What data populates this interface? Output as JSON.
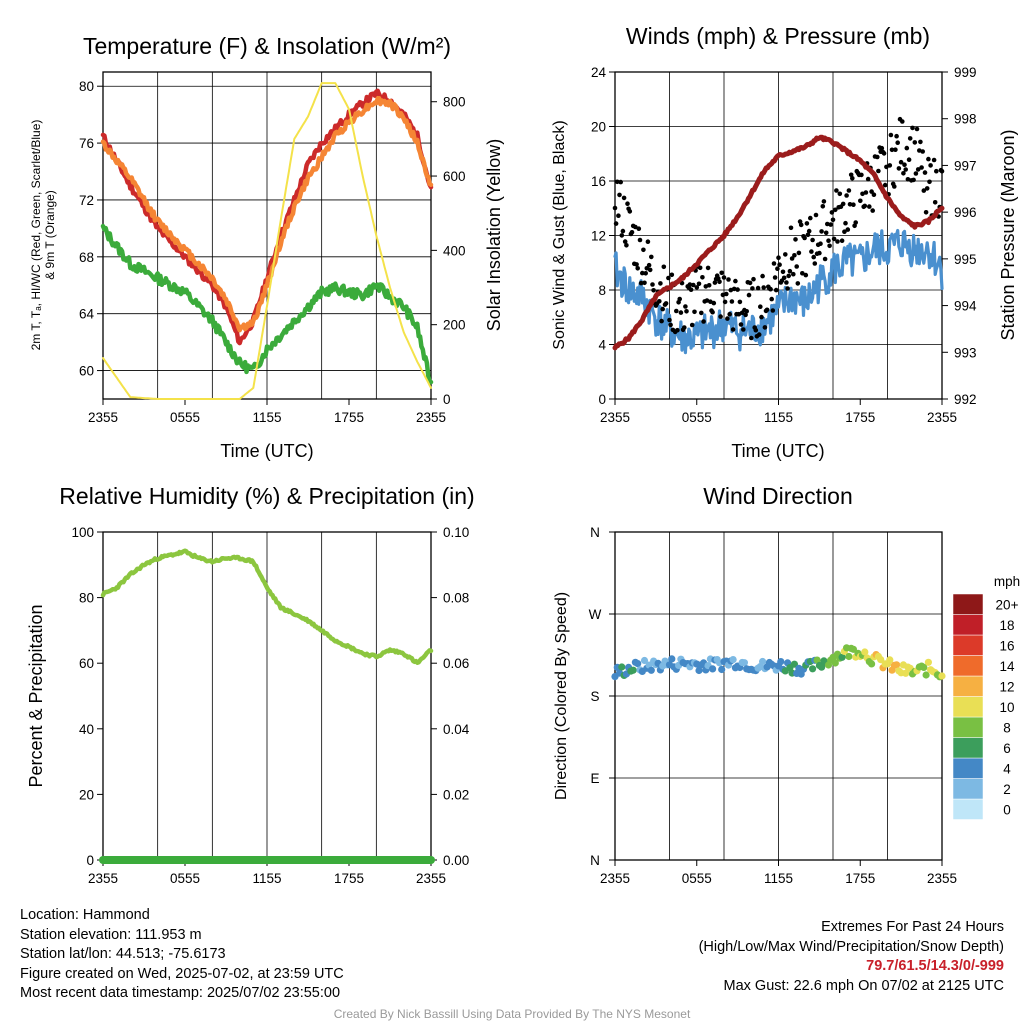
{
  "x_ticks": [
    "2355",
    "0555",
    "1155",
    "1755",
    "2355"
  ],
  "panels": {
    "temperature": {
      "title": "Temperature (F) & Insolation (W/m²)",
      "xlabel": "Time (UTC)",
      "ylabel_left_1": "2m T, Tₐ, HI/WC (Red, Green, Scarlet/Blue)",
      "ylabel_left_2": "& 9m T (Orange)",
      "ylabel_right": "Solar Insolation (Yellow)"
    },
    "winds": {
      "title": "Winds (mph) & Pressure (mb)",
      "xlabel": "Time (UTC)",
      "ylabel_left": "Sonic Wind & Gust (Blue, Black)",
      "ylabel_right": "Station Pressure (Maroon)"
    },
    "humidity": {
      "title": "Relative Humidity (%) & Precipitation (in)",
      "ylabel_left": "Percent & Precipitation"
    },
    "direction": {
      "title": "Wind Direction",
      "ylabel_left": "Direction (Colored By Speed)",
      "legend_title": "mph"
    }
  },
  "colors": {
    "temp_2m": "#cc2a2a",
    "temp_9m": "#f58534",
    "dewpoint": "#3bab3b",
    "insolation": "#f4e24a",
    "wind_speed": "#4a90cf",
    "wind_gust": "#000000",
    "pressure": "#9b1c1c",
    "humidity": "#8cc63f",
    "precip": "#3bab3b"
  },
  "chart_data": [
    {
      "type": "line",
      "title": "Temperature (F) & Insolation (W/m²)",
      "xlabel": "Time (UTC)",
      "x_hours_since_2355": [
        0,
        2,
        4,
        6,
        8,
        9,
        10,
        11,
        12,
        13,
        14,
        15,
        16,
        17,
        18,
        19,
        20,
        21,
        22,
        23,
        24
      ],
      "ylim_left": [
        58,
        81
      ],
      "ylim_right": [
        0,
        880
      ],
      "yticks_left": [
        60,
        64,
        68,
        72,
        76,
        80
      ],
      "yticks_right": [
        0,
        200,
        400,
        600,
        800
      ],
      "series": [
        {
          "name": "2m T",
          "axis": "left",
          "color": "#cc2a2a",
          "values": [
            76.5,
            73.0,
            70.0,
            68.0,
            66.0,
            64.5,
            62.0,
            63.5,
            66.5,
            69.5,
            72.0,
            74.5,
            76.0,
            77.0,
            78.0,
            78.8,
            79.5,
            79.0,
            78.0,
            76.5,
            72.7
          ]
        },
        {
          "name": "9m T",
          "axis": "left",
          "color": "#f58534",
          "values": [
            76.0,
            73.5,
            70.5,
            68.5,
            66.5,
            65.0,
            63.0,
            63.3,
            66.0,
            69.0,
            71.5,
            73.5,
            75.0,
            76.5,
            77.5,
            78.3,
            79.0,
            78.8,
            77.8,
            76.0,
            72.9
          ]
        },
        {
          "name": "Dewpoint",
          "axis": "left",
          "color": "#3bab3b",
          "values": [
            70.0,
            67.5,
            66.5,
            65.5,
            63.5,
            62.0,
            60.5,
            60.0,
            61.5,
            62.5,
            63.5,
            64.5,
            65.5,
            65.8,
            65.5,
            65.3,
            66.0,
            65.2,
            64.5,
            63.0,
            59.0
          ]
        },
        {
          "name": "Solar Insolation",
          "axis": "right",
          "color": "#f4e24a",
          "values": [
            110,
            5,
            0,
            0,
            0,
            0,
            0,
            30,
            250,
            480,
            700,
            760,
            850,
            850,
            780,
            600,
            440,
            300,
            180,
            100,
            30
          ]
        }
      ]
    },
    {
      "type": "line",
      "title": "Winds (mph) & Pressure (mb)",
      "xlabel": "Time (UTC)",
      "x_hours_since_2355": [
        0,
        1,
        2,
        3,
        4,
        5,
        6,
        7,
        8,
        9,
        10,
        11,
        12,
        13,
        14,
        15,
        16,
        17,
        18,
        19,
        20,
        21,
        22,
        23,
        24
      ],
      "ylim_left": [
        0,
        24
      ],
      "ylim_right": [
        992,
        999
      ],
      "yticks_left": [
        0,
        4,
        8,
        12,
        16,
        20,
        24
      ],
      "yticks_right": [
        992,
        993,
        994,
        995,
        996,
        997,
        998,
        999
      ],
      "series": [
        {
          "name": "Sonic Wind",
          "axis": "left",
          "color": "#4a90cf",
          "values": [
            9.5,
            8.0,
            7.5,
            6.0,
            5.0,
            4.5,
            4.5,
            5.0,
            5.5,
            5.0,
            5.0,
            5.5,
            6.5,
            7.5,
            7.0,
            8.5,
            9.5,
            10.0,
            10.0,
            11.0,
            11.0,
            11.5,
            11.0,
            11.0,
            9.5
          ]
        },
        {
          "name": "Gust",
          "axis": "left",
          "color": "#000000",
          "values": [
            15.0,
            12.5,
            10.5,
            8.5,
            7.0,
            6.5,
            7.5,
            8.0,
            7.5,
            6.5,
            6.5,
            7.0,
            9.5,
            10.5,
            11.0,
            12.0,
            13.0,
            14.0,
            15.0,
            16.0,
            17.0,
            18.5,
            18.0,
            15.5,
            15.5
          ]
        },
        {
          "name": "Station Pressure",
          "axis": "right",
          "color": "#9b1c1c",
          "values": [
            993.1,
            993.3,
            993.7,
            994.2,
            994.4,
            994.6,
            994.9,
            995.2,
            995.5,
            995.9,
            996.4,
            996.9,
            997.2,
            997.3,
            997.4,
            997.6,
            997.5,
            997.3,
            997.1,
            996.8,
            996.3,
            995.9,
            995.7,
            995.8,
            996.1
          ]
        }
      ]
    },
    {
      "type": "line",
      "title": "Relative Humidity (%) & Precipitation (in)",
      "x_hours_since_2355": [
        0,
        1,
        2,
        3,
        4,
        5,
        6,
        7,
        8,
        9,
        10,
        11,
        12,
        13,
        14,
        15,
        16,
        17,
        18,
        19,
        20,
        21,
        22,
        23,
        24
      ],
      "ylim_left": [
        0,
        100
      ],
      "ylim_right": [
        0.0,
        0.1
      ],
      "yticks_left": [
        0,
        20,
        40,
        60,
        80,
        100
      ],
      "yticks_right": [
        0.0,
        0.02,
        0.04,
        0.06,
        0.08,
        0.1
      ],
      "series": [
        {
          "name": "Relative Humidity",
          "axis": "left",
          "color": "#8cc63f",
          "values": [
            81,
            83,
            87,
            90,
            92,
            93,
            94,
            92,
            91,
            92,
            92,
            91,
            83,
            77,
            75,
            73,
            70,
            67,
            65,
            63,
            62,
            64,
            63,
            60,
            64
          ]
        },
        {
          "name": "Precipitation",
          "axis": "right",
          "color": "#3bab3b",
          "values": [
            0,
            0,
            0,
            0,
            0,
            0,
            0,
            0,
            0,
            0,
            0,
            0,
            0,
            0,
            0,
            0,
            0,
            0,
            0,
            0,
            0,
            0,
            0,
            0,
            0
          ]
        }
      ]
    },
    {
      "type": "scatter",
      "title": "Wind Direction",
      "ylabel": "Direction (Colored By Speed)",
      "yticks": [
        "N",
        "E",
        "S",
        "W",
        "N"
      ],
      "ylim_deg": [
        0,
        360
      ],
      "x_hours_since_2355": [
        0,
        1,
        2,
        3,
        4,
        5,
        6,
        7,
        8,
        9,
        10,
        11,
        12,
        13,
        14,
        15,
        16,
        17,
        18,
        19,
        20,
        21,
        22,
        23,
        24
      ],
      "direction_deg": [
        205,
        210,
        212,
        214,
        215,
        216,
        215,
        214,
        216,
        218,
        214,
        212,
        214,
        212,
        210,
        215,
        222,
        228,
        230,
        220,
        214,
        208,
        206,
        210,
        205
      ],
      "speed_mph": [
        6,
        6,
        5,
        4,
        4,
        4,
        4,
        4,
        4,
        4,
        4,
        4,
        5,
        6,
        6,
        7,
        8,
        9,
        10,
        11,
        12,
        11,
        10,
        10,
        9
      ],
      "colorbar": {
        "labels": [
          "0",
          "2",
          "4",
          "6",
          "8",
          "10",
          "12",
          "14",
          "16",
          "18",
          "20+"
        ],
        "colors": [
          "#bfe6f8",
          "#7db9e3",
          "#4488c6",
          "#3c9e5c",
          "#79c043",
          "#e9df55",
          "#f6b042",
          "#ef6b2b",
          "#dc3a29",
          "#c01f28",
          "#8e1818"
        ]
      }
    }
  ],
  "info": {
    "location": "Location: Hammond",
    "elevation": "Station elevation: 111.953 m",
    "latlon": "Station lat/lon: 44.513; -75.6173",
    "created": "Figure created on Wed, 2025-07-02, at 23:59 UTC",
    "recent": "Most recent data timestamp: 2025/07/02 23:55:00"
  },
  "extremes": {
    "heading": "Extremes For Past 24 Hours",
    "subheading": "(High/Low/Max Wind/Precipitation/Snow Depth)",
    "values": "79.7/61.5/14.3/0/-999",
    "gust": "Max Gust: 22.6 mph On 07/02 at 2125 UTC"
  },
  "credit": "Created By Nick Bassill Using Data Provided By The NYS Mesonet"
}
